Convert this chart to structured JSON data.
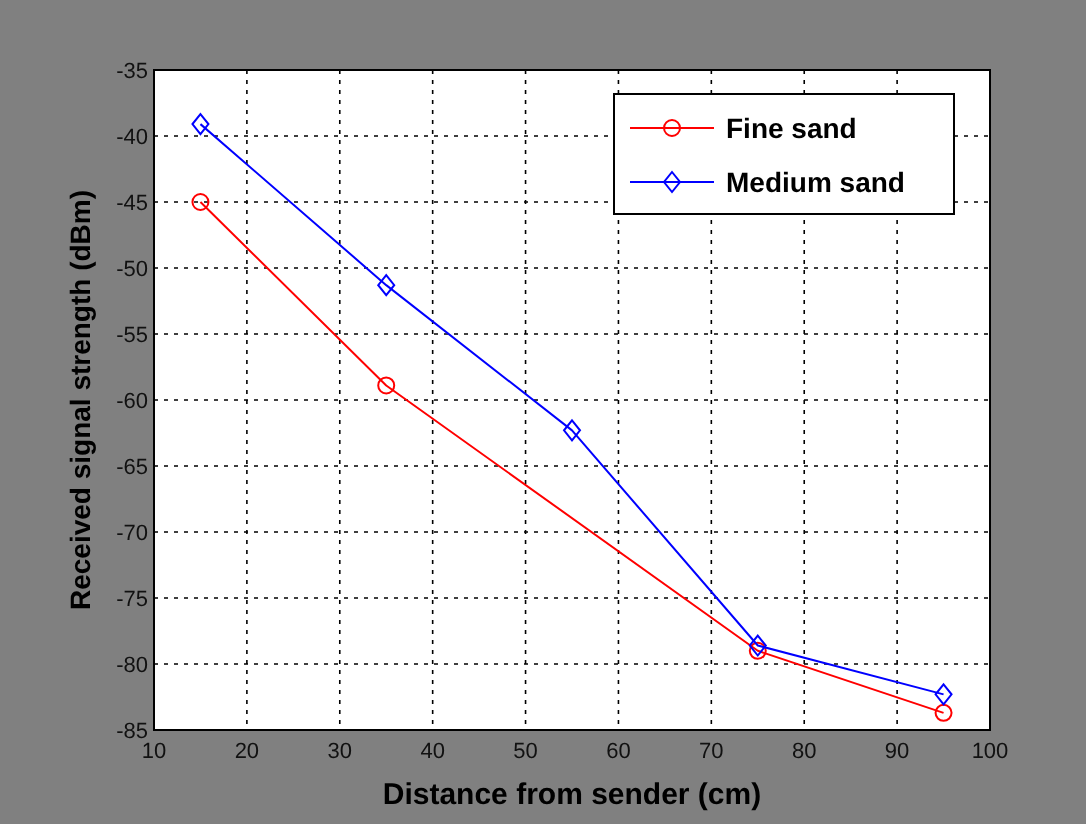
{
  "chart_data": {
    "type": "line",
    "xlabel": "Distance from sender (cm)",
    "ylabel": "Received signal strength (dBm)",
    "xlim": [
      10,
      100
    ],
    "xticks": [
      10,
      20,
      30,
      40,
      50,
      60,
      70,
      80,
      90,
      100
    ],
    "ylim": [
      -85,
      -35
    ],
    "yticks": [
      -85,
      -80,
      -75,
      -70,
      -65,
      -60,
      -55,
      -50,
      -45,
      -40,
      -35
    ],
    "grid": true,
    "legend": "top right",
    "series": [
      {
        "name": "Fine sand",
        "color": "#ff0000",
        "marker": "circle",
        "x": [
          15,
          35,
          75,
          95
        ],
        "values": [
          -45,
          -58.9,
          -79,
          -83.7
        ]
      },
      {
        "name": "Medium sand",
        "color": "#0000ff",
        "marker": "diamond",
        "x": [
          15,
          35,
          55,
          75,
          95
        ],
        "values": [
          -39.1,
          -51.3,
          -62.3,
          -78.6,
          -82.3
        ]
      }
    ]
  }
}
